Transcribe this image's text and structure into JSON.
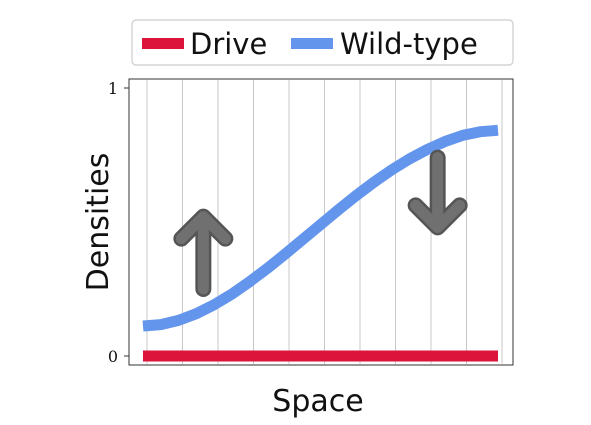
{
  "chart_data": {
    "type": "line",
    "xlabel": "Space",
    "ylabel": "Densities",
    "ylim": [
      0,
      1
    ],
    "yticks": [
      {
        "value": 0,
        "label": "0"
      },
      {
        "value": 1,
        "label": "1"
      }
    ],
    "grid": "vertical",
    "legend_position": "top",
    "series": [
      {
        "name": "Drive",
        "color": "#dc143c",
        "x": [
          0,
          0.1,
          0.2,
          0.3,
          0.4,
          0.5,
          0.6,
          0.7,
          0.8,
          0.9,
          1.0
        ],
        "values": [
          0,
          0,
          0,
          0,
          0,
          0,
          0,
          0,
          0,
          0,
          0
        ]
      },
      {
        "name": "Wild-type",
        "color": "#6495ed",
        "x": [
          0,
          0.05,
          0.1,
          0.15,
          0.2,
          0.25,
          0.3,
          0.35,
          0.4,
          0.45,
          0.5,
          0.55,
          0.6,
          0.65,
          0.7,
          0.75,
          0.8,
          0.85,
          0.9,
          0.95,
          1.0
        ],
        "values": [
          0.112,
          0.117,
          0.133,
          0.158,
          0.191,
          0.231,
          0.277,
          0.327,
          0.38,
          0.435,
          0.49,
          0.545,
          0.598,
          0.648,
          0.694,
          0.735,
          0.77,
          0.8,
          0.823,
          0.837,
          0.842
        ]
      }
    ],
    "annotations": [
      {
        "kind": "arrow",
        "direction": "up",
        "color": "#707070",
        "x": 0.17,
        "y_from": 0.25,
        "y_to": 0.52
      },
      {
        "kind": "arrow",
        "direction": "down",
        "color": "#707070",
        "x": 0.83,
        "y_from": 0.74,
        "y_to": 0.48
      }
    ]
  }
}
